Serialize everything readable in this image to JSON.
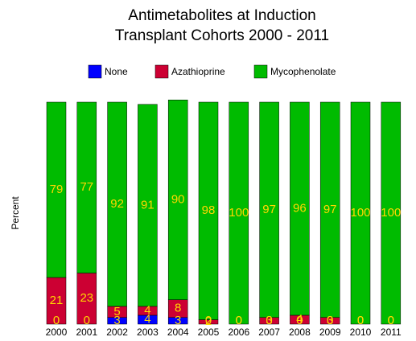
{
  "chart_data": {
    "type": "stacked_bar",
    "title": "Antimetabolites at Induction",
    "subtitle": "Transplant Cohorts 2000 - 2011",
    "y_label": "Percent",
    "categories": [
      "2000",
      "2001",
      "2002",
      "2003",
      "2004",
      "2005",
      "2006",
      "2007",
      "2008",
      "2009",
      "2010",
      "2011"
    ],
    "series": [
      {
        "name": "None",
        "color": "#0000ff",
        "values": [
          0,
          0,
          3,
          4,
          3,
          0,
          0,
          0,
          0,
          0,
          0,
          0
        ]
      },
      {
        "name": "Azathioprine",
        "color": "#cc0033",
        "values": [
          21,
          23,
          5,
          4,
          8,
          2,
          0,
          3,
          4,
          3,
          0,
          0
        ]
      },
      {
        "name": "Mycophenolate",
        "color": "#00bb00",
        "values": [
          79,
          77,
          92,
          91,
          90,
          98,
          100,
          97,
          96,
          97,
          100,
          100
        ]
      }
    ],
    "ylim": [
      0,
      100
    ]
  }
}
